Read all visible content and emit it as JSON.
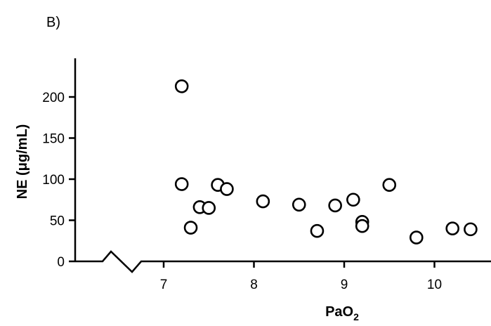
{
  "chart_data": {
    "type": "scatter",
    "panel_label": "B)",
    "title": "",
    "xlabel": {
      "main": "PaO",
      "sub": "2"
    },
    "ylabel": "NE (μg/mL)",
    "xlim": [
      6.0,
      10.6
    ],
    "ylim": [
      0,
      245
    ],
    "xticks": [
      7,
      8,
      9,
      10
    ],
    "yticks": [
      0,
      50,
      100,
      150,
      200
    ],
    "axis_break": "x-axis between 6.2 and 6.8",
    "grid": false,
    "marker": "open-circle",
    "points": [
      {
        "x": 7.2,
        "y": 213
      },
      {
        "x": 7.2,
        "y": 94
      },
      {
        "x": 7.3,
        "y": 41
      },
      {
        "x": 7.4,
        "y": 66
      },
      {
        "x": 7.5,
        "y": 65
      },
      {
        "x": 7.6,
        "y": 93
      },
      {
        "x": 7.7,
        "y": 88
      },
      {
        "x": 8.1,
        "y": 73
      },
      {
        "x": 8.5,
        "y": 69
      },
      {
        "x": 8.7,
        "y": 37
      },
      {
        "x": 8.9,
        "y": 68
      },
      {
        "x": 9.1,
        "y": 75
      },
      {
        "x": 9.2,
        "y": 48
      },
      {
        "x": 9.2,
        "y": 43
      },
      {
        "x": 9.5,
        "y": 93
      },
      {
        "x": 9.8,
        "y": 29
      },
      {
        "x": 10.2,
        "y": 40
      },
      {
        "x": 10.4,
        "y": 39
      }
    ]
  }
}
